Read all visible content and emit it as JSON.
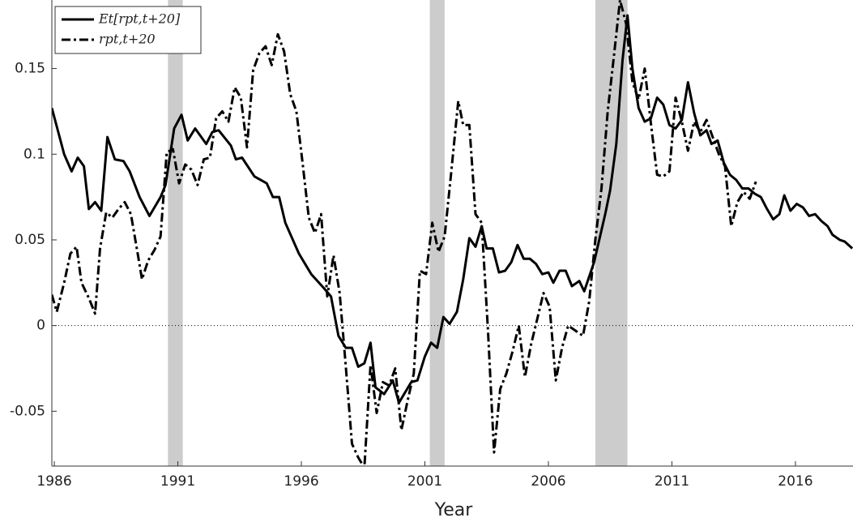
{
  "chart_data": {
    "type": "line",
    "x_label": "Year",
    "xlim": [
      1985.9,
      2018.33
    ],
    "ylim": [
      -0.082,
      0.19
    ],
    "xticks": [
      1986,
      1991,
      1996,
      2001,
      2006,
      2011,
      2016
    ],
    "yticks": [
      -0.05,
      0,
      0.05,
      0.1,
      0.15
    ],
    "zero_line": true,
    "legend": "top-left",
    "shading": {
      "color": "#cccccc",
      "spans": [
        [
          1990.6,
          1991.2
        ],
        [
          2001.2,
          2001.8
        ],
        [
          2007.9,
          2009.2
        ]
      ]
    },
    "series": [
      {
        "name": "Et[rpt,t+20]",
        "color": "#000000",
        "dash": "solid",
        "x": [
          1985.9,
          1986.4,
          1986.7,
          1986.95,
          1987.2,
          1987.4,
          1987.65,
          1987.9,
          1988.15,
          1988.45,
          1988.8,
          1989.05,
          1989.45,
          1989.85,
          1990.3,
          1990.5,
          1990.85,
          1991.15,
          1991.4,
          1991.7,
          1992.15,
          1992.4,
          1992.65,
          1993.15,
          1993.35,
          1993.6,
          1994.1,
          1994.6,
          1994.85,
          1995.1,
          1995.35,
          1995.9,
          1996.4,
          1996.9,
          1997.2,
          1997.5,
          1997.8,
          1998.05,
          1998.3,
          1998.55,
          1998.8,
          1999.0,
          1999.35,
          1999.7,
          1999.95,
          2000.45,
          2000.7,
          2001.0,
          2001.25,
          2001.5,
          2001.75,
          2002.0,
          2002.3,
          2002.55,
          2002.8,
          2003.05,
          2003.3,
          2003.5,
          2003.75,
          2004.0,
          2004.25,
          2004.5,
          2004.75,
          2005.0,
          2005.25,
          2005.5,
          2005.75,
          2006.0,
          2006.2,
          2006.45,
          2006.7,
          2006.95,
          2007.25,
          2007.45,
          2007.85,
          2008.3,
          2008.5,
          2008.75,
          2009.0,
          2009.2,
          2009.4,
          2009.65,
          2009.9,
          2010.15,
          2010.4,
          2010.65,
          2010.9,
          2011.15,
          2011.4,
          2011.65,
          2011.9,
          2012.15,
          2012.4,
          2012.6,
          2012.85,
          2013.1,
          2013.35,
          2013.6,
          2013.85,
          2014.1,
          2014.35,
          2014.6,
          2014.85,
          2015.1,
          2015.35,
          2015.55,
          2015.8,
          2016.05,
          2016.3,
          2016.55,
          2016.8,
          2017.05,
          2017.3,
          2017.5,
          2017.8,
          2018.0,
          2018.3
        ],
        "values": [
          0.127,
          0.1,
          0.09,
          0.098,
          0.093,
          0.068,
          0.072,
          0.067,
          0.11,
          0.097,
          0.096,
          0.09,
          0.075,
          0.064,
          0.075,
          0.082,
          0.115,
          0.123,
          0.108,
          0.115,
          0.106,
          0.113,
          0.114,
          0.105,
          0.097,
          0.098,
          0.087,
          0.083,
          0.075,
          0.075,
          0.06,
          0.042,
          0.03,
          0.022,
          0.017,
          -0.006,
          -0.013,
          -0.013,
          -0.024,
          -0.022,
          -0.01,
          -0.036,
          -0.04,
          -0.032,
          -0.045,
          -0.033,
          -0.032,
          -0.018,
          -0.01,
          -0.013,
          0.005,
          0.001,
          0.008,
          0.027,
          0.051,
          0.046,
          0.058,
          0.045,
          0.045,
          0.031,
          0.032,
          0.037,
          0.047,
          0.039,
          0.039,
          0.036,
          0.03,
          0.031,
          0.025,
          0.032,
          0.032,
          0.023,
          0.026,
          0.02,
          0.037,
          0.065,
          0.079,
          0.106,
          0.155,
          0.181,
          0.15,
          0.127,
          0.119,
          0.121,
          0.133,
          0.129,
          0.117,
          0.115,
          0.12,
          0.142,
          0.124,
          0.111,
          0.114,
          0.106,
          0.108,
          0.095,
          0.088,
          0.085,
          0.08,
          0.08,
          0.077,
          0.075,
          0.068,
          0.062,
          0.065,
          0.076,
          0.067,
          0.071,
          0.069,
          0.064,
          0.065,
          0.061,
          0.058,
          0.053,
          0.05,
          0.049,
          0.045
        ]
      },
      {
        "name": "rpt,t+20",
        "color": "#000000",
        "dash": "dashdot",
        "x": [
          1985.9,
          1986.1,
          1986.4,
          1986.65,
          1986.9,
          1987.1,
          1987.4,
          1987.65,
          1987.85,
          1988.1,
          1988.35,
          1988.6,
          1988.85,
          1989.1,
          1989.4,
          1989.55,
          1989.8,
          1990.05,
          1990.3,
          1990.55,
          1990.8,
          1991.05,
          1991.3,
          1991.55,
          1991.8,
          1992.05,
          1992.3,
          1992.55,
          1992.8,
          1993.05,
          1993.3,
          1993.55,
          1993.8,
          1994.05,
          1994.3,
          1994.55,
          1994.8,
          1995.05,
          1995.3,
          1995.55,
          1995.8,
          1996.05,
          1996.3,
          1996.55,
          1996.8,
          1997.05,
          1997.3,
          1997.55,
          1997.8,
          1998.05,
          1998.3,
          1998.55,
          1998.8,
          1999.05,
          1999.3,
          1999.55,
          1999.8,
          2000.05,
          2000.3,
          2000.55,
          2000.8,
          2001.05,
          2001.3,
          2001.55,
          2001.8,
          2002.05,
          2002.35,
          2002.55,
          2002.8,
          2003.05,
          2003.3,
          2003.55,
          2003.8,
          2004.05,
          2004.3,
          2004.55,
          2004.8,
          2005.05,
          2005.3,
          2005.55,
          2005.8,
          2006.05,
          2006.3,
          2006.55,
          2006.8,
          2007.4,
          2007.65,
          2007.9,
          2008.15,
          2008.4,
          2008.65,
          2008.9,
          2009.15,
          2009.4,
          2009.65,
          2009.9,
          2010.15,
          2010.4,
          2010.65,
          2010.9,
          2011.15,
          2011.4,
          2011.65,
          2011.9,
          2012.15,
          2012.4,
          2012.65,
          2012.9,
          2013.15,
          2013.4,
          2013.65,
          2013.9,
          2014.15,
          2014.4
        ],
        "values": [
          0.018,
          0.008,
          0.025,
          0.042,
          0.046,
          0.025,
          0.016,
          0.007,
          0.045,
          0.066,
          0.063,
          0.068,
          0.072,
          0.065,
          0.04,
          0.027,
          0.038,
          0.044,
          0.052,
          0.101,
          0.103,
          0.083,
          0.094,
          0.091,
          0.082,
          0.097,
          0.098,
          0.121,
          0.125,
          0.119,
          0.139,
          0.133,
          0.104,
          0.149,
          0.159,
          0.163,
          0.152,
          0.17,
          0.16,
          0.135,
          0.125,
          0.095,
          0.063,
          0.054,
          0.065,
          0.017,
          0.041,
          0.019,
          -0.024,
          -0.069,
          -0.077,
          -0.083,
          -0.023,
          -0.051,
          -0.033,
          -0.035,
          -0.025,
          -0.061,
          -0.044,
          -0.028,
          0.032,
          0.03,
          0.06,
          0.043,
          0.052,
          0.087,
          0.131,
          0.117,
          0.117,
          0.065,
          0.06,
          -0.002,
          -0.074,
          -0.037,
          -0.028,
          -0.015,
          0,
          -0.03,
          -0.011,
          0.004,
          0.019,
          0.011,
          -0.032,
          -0.013,
          0,
          -0.006,
          0.014,
          0.05,
          0.08,
          0.125,
          0.157,
          0.19,
          0.176,
          0.142,
          0.132,
          0.15,
          0.118,
          0.088,
          0.087,
          0.09,
          0.133,
          0.119,
          0.102,
          0.119,
          0.113,
          0.12,
          0.11,
          0.1,
          0.093,
          0.058,
          0.072,
          0.078,
          0.074,
          0.084
        ]
      }
    ]
  }
}
